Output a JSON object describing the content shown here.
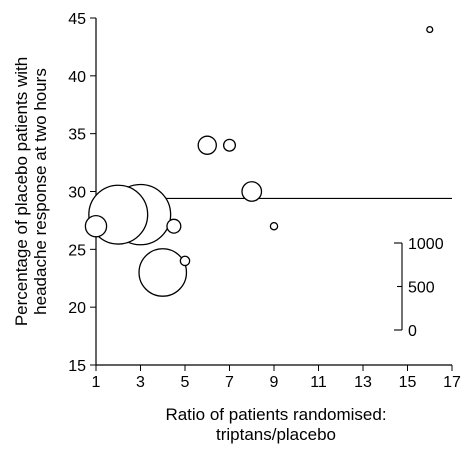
{
  "chart_data": {
    "type": "scatter",
    "title": "",
    "xlabel_lines": [
      "Ratio of patients randomised:",
      "triptans/placebo"
    ],
    "ylabel_lines": [
      "Percentage of placebo patients with",
      "headache response at two hours"
    ],
    "xlim": [
      1,
      17
    ],
    "ylim": [
      15,
      45
    ],
    "xticks": [
      1,
      3,
      5,
      7,
      9,
      11,
      13,
      15,
      17
    ],
    "yticks": [
      15,
      20,
      25,
      30,
      35,
      40,
      45
    ],
    "reference_line_y": 29.4,
    "points": [
      {
        "x": 1.0,
        "y": 27.0,
        "n": 130
      },
      {
        "x": 2.0,
        "y": 28.0,
        "n": 1000
      },
      {
        "x": 3.0,
        "y": 28.0,
        "n": 1050
      },
      {
        "x": 4.0,
        "y": 23.0,
        "n": 650
      },
      {
        "x": 4.5,
        "y": 27.0,
        "n": 55
      },
      {
        "x": 5.0,
        "y": 24.0,
        "n": 25
      },
      {
        "x": 6.0,
        "y": 34.0,
        "n": 95
      },
      {
        "x": 7.0,
        "y": 34.0,
        "n": 40
      },
      {
        "x": 8.0,
        "y": 30.0,
        "n": 110
      },
      {
        "x": 9.0,
        "y": 27.0,
        "n": 15
      },
      {
        "x": 16.0,
        "y": 44.0,
        "n": 10
      }
    ],
    "size_legend": {
      "labels": [
        "1000",
        "500",
        "0"
      ],
      "values": [
        1000,
        500,
        0
      ]
    }
  }
}
